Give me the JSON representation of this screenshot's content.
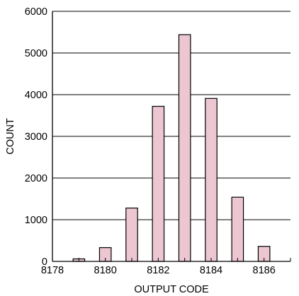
{
  "chart_data": {
    "type": "bar",
    "title": "",
    "xlabel": "OUTPUT CODE",
    "ylabel": "COUNT",
    "x": [
      8179,
      8180,
      8181,
      8182,
      8183,
      8184,
      8185,
      8186
    ],
    "values": [
      60,
      330,
      1280,
      3720,
      5440,
      3910,
      1540,
      360
    ],
    "xlim": [
      8178,
      8187
    ],
    "ylim": [
      0,
      6000
    ],
    "x_ticks": [
      8178,
      8180,
      8182,
      8184,
      8186
    ],
    "y_ticks": [
      0,
      1000,
      2000,
      3000,
      4000,
      5000,
      6000
    ],
    "grid": "horizontal",
    "legend": "none",
    "bar_color": "#ecc7d1",
    "bar_edge_color": "#000000"
  }
}
